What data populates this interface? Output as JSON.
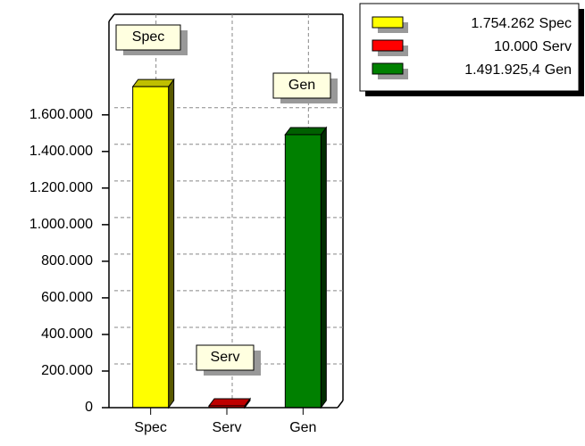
{
  "chart_data": {
    "type": "bar",
    "categories": [
      "Spec",
      "Serv",
      "Gen"
    ],
    "values": [
      1754262,
      10000,
      1491925.4
    ],
    "value_labels": [
      "1.754.262",
      "10.000",
      "1.491.925,4"
    ],
    "colors": [
      "#ffff00",
      "#ff0000",
      "#008000"
    ],
    "ylim": [
      0,
      2140000
    ],
    "yticks": [
      0,
      {
        "value": 200000,
        "label": "200.000"
      },
      {
        "value": 400000,
        "label": "400.000"
      },
      {
        "value": 600000,
        "label": "600.000"
      },
      {
        "value": 800000,
        "label": "800.000"
      },
      {
        "value": 1000000,
        "label": "1.000.000"
      },
      {
        "value": 1200000,
        "label": "1.200.000"
      },
      {
        "value": 1400000,
        "label": "1.400.000"
      },
      {
        "value": 1600000,
        "label": "1.600.000"
      }
    ],
    "grid": true,
    "legend": "top-right"
  }
}
